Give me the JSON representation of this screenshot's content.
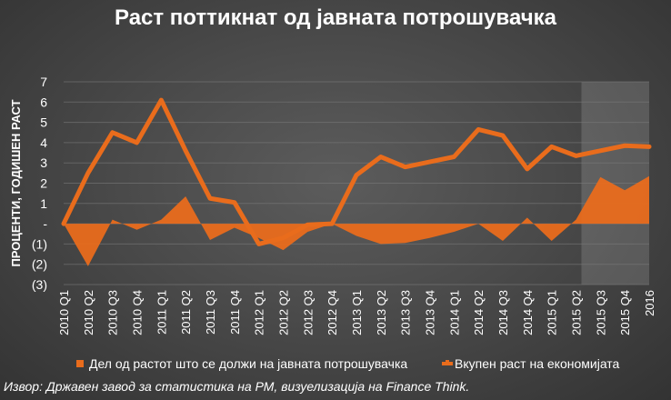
{
  "chart_data": {
    "type": "area",
    "title": "Раст поттикнат од јавната потрошувачка",
    "ylabel": "ПРОЦЕНТИ, ГОДИШЕН РАСТ",
    "xlabel": "",
    "ylim": [
      -3,
      7
    ],
    "y_ticks": [
      -3,
      -2,
      -1,
      0,
      1,
      2,
      3,
      4,
      5,
      6,
      7
    ],
    "y_tick_labels": [
      "(3)",
      "(2)",
      "(1)",
      "-",
      "1",
      "2",
      "3",
      "4",
      "5",
      "6",
      "7"
    ],
    "grid": true,
    "legend_position": "bottom",
    "categories": [
      "2010 Q1",
      "2010 Q2",
      "2010 Q3",
      "2010 Q4",
      "2011 Q1",
      "2011 Q2",
      "2011 Q3",
      "2011 Q4",
      "2012 Q1",
      "2012 Q2",
      "2012 Q3",
      "2012 Q4",
      "2013 Q1",
      "2013 Q2",
      "2013 Q3",
      "2013 Q4",
      "2014 Q1",
      "2014 Q2",
      "2014 Q3",
      "2014 Q4",
      "2015 Q1",
      "2015 Q2",
      "2015 Q3",
      "2015 Q4",
      "2016"
    ],
    "series": [
      {
        "name": "Дел од растот што се должи на јавната потрошувачка",
        "type": "area",
        "color": "#e96c1c",
        "values": [
          0,
          -2.1,
          0.2,
          -0.3,
          0.2,
          1.35,
          -0.8,
          -0.2,
          -0.7,
          -1.3,
          -0.4,
          0,
          -0.6,
          -1.0,
          -0.95,
          -0.7,
          -0.4,
          0,
          -0.85,
          0.3,
          -0.85,
          0.2,
          2.3,
          1.65,
          2.35
        ]
      },
      {
        "name": "Вкупен раст на економијата",
        "type": "line",
        "color": "#e96c1c",
        "values": [
          0,
          2.5,
          4.5,
          4.0,
          6.1,
          3.6,
          1.25,
          1.05,
          -1.0,
          -0.7,
          -0.05,
          0,
          2.4,
          3.3,
          2.8,
          3.05,
          3.3,
          4.65,
          4.35,
          2.7,
          3.8,
          3.35,
          3.6,
          3.85,
          3.8
        ]
      }
    ],
    "highlight_range": [
      "2015 Q2",
      "2016"
    ],
    "source": "Извор: Државен завод за статистика на РМ, визуелизација на  Finance Think."
  }
}
